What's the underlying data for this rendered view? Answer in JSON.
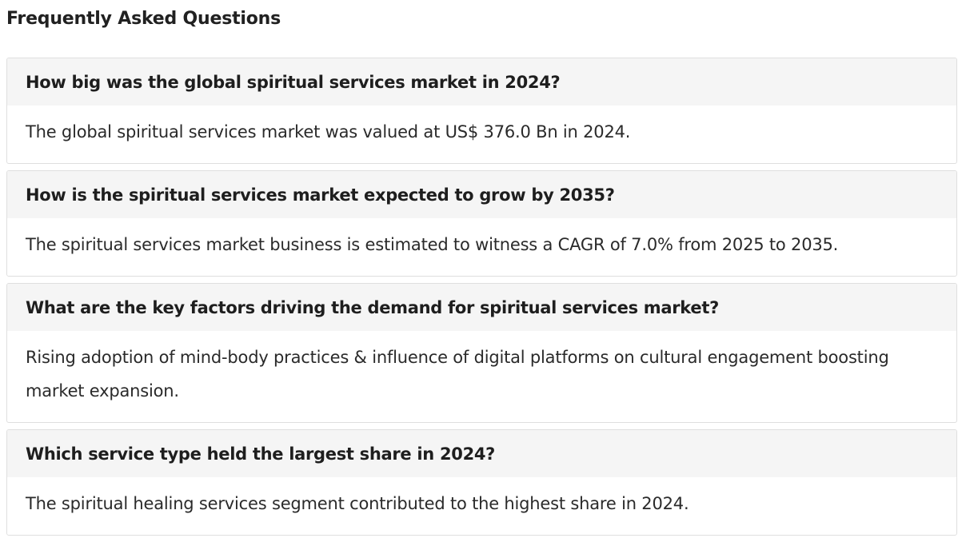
{
  "page": {
    "title": "Frequently Asked Questions"
  },
  "faq": [
    {
      "question": "How big was the global spiritual services market in 2024?",
      "answer": "The global spiritual services market was valued at US$ 376.0 Bn in 2024."
    },
    {
      "question": "How is the spiritual services market expected to grow by 2035?",
      "answer": "The spiritual services market business is estimated to witness a CAGR of 7.0% from 2025 to 2035."
    },
    {
      "question": "What are the key factors driving the demand for spiritual services market?",
      "answer": "Rising adoption of mind-body practices & influence of digital platforms on cultural engagement boosting market expansion."
    },
    {
      "question": "Which service type held the largest share in 2024?",
      "answer": "The spiritual healing services segment contributed to the highest share in 2024."
    }
  ]
}
